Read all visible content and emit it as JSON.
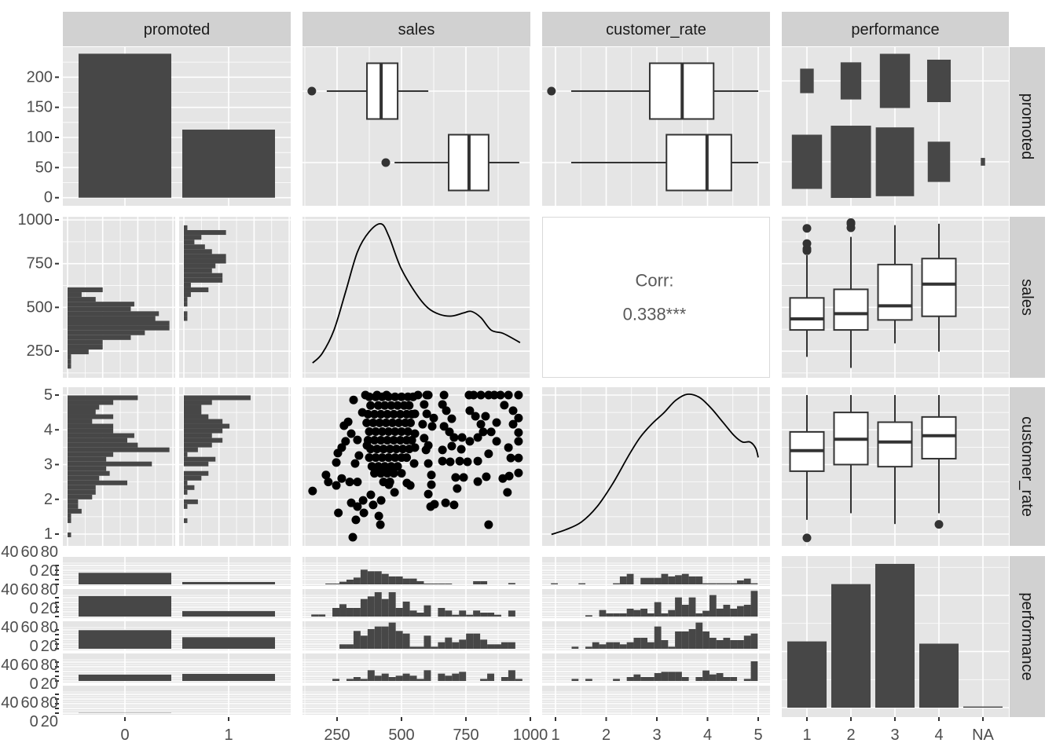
{
  "strips": {
    "top": [
      "promoted",
      "sales",
      "customer_rate",
      "performance"
    ],
    "right": [
      "promoted",
      "sales",
      "customer_rate",
      "performance"
    ]
  },
  "axes": {
    "x": {
      "promoted": [
        "0",
        "1"
      ],
      "sales": [
        "250",
        "500",
        "750",
        "1000"
      ],
      "customer_rate": [
        "1",
        "2",
        "3",
        "4",
        "5"
      ],
      "performance": [
        "1",
        "2",
        "3",
        "4",
        "NA"
      ]
    },
    "y": {
      "promoted": [
        "0",
        "50",
        "100",
        "150",
        "200"
      ],
      "sales": [
        "250",
        "500",
        "750",
        "1000"
      ],
      "customer_rate": [
        "1",
        "2",
        "3",
        "4",
        "5"
      ],
      "performance": [
        "0",
        "20",
        "40",
        "60",
        "80"
      ]
    }
  },
  "correlation": {
    "label": "Corr:",
    "value": "0.338***"
  },
  "colors": {
    "panel": "#e5e5e5",
    "strip": "#d1d1d1",
    "bar": "#474747",
    "grid": "#ffffff",
    "point": "#000000"
  },
  "chart_data": {
    "type": "scatter-matrix",
    "variables": [
      "promoted",
      "sales",
      "customer_rate",
      "performance"
    ],
    "promoted_levels": [
      "0",
      "1"
    ],
    "performance_levels": [
      "1",
      "2",
      "3",
      "4",
      "NA"
    ],
    "promoted_counts": [
      239,
      113
    ],
    "performance_counts": [
      59,
      110,
      128,
      57,
      1
    ],
    "performance_by_promoted": {
      "p0": [
        49,
        87,
        79,
        27,
        1
      ],
      "p1": [
        10,
        23,
        49,
        30,
        0
      ]
    },
    "sales_box_by_promoted": [
      {
        "promoted": "0",
        "min": 210,
        "q1": 366,
        "median": 421,
        "q3": 485,
        "max": 604,
        "outliers": [
          152
        ]
      },
      {
        "promoted": "1",
        "min": 473,
        "q1": 683,
        "median": 762,
        "q3": 838,
        "max": 957,
        "outliers": [
          439
        ]
      }
    ],
    "rate_box_by_promoted": [
      {
        "promoted": "0",
        "min": 1.31,
        "q1": 2.86,
        "median": 3.5,
        "q3": 4.12,
        "max": 5.0,
        "outliers": [
          0.92
        ]
      },
      {
        "promoted": "1",
        "min": 1.31,
        "q1": 3.19,
        "median": 3.99,
        "q3": 4.47,
        "max": 5.0,
        "outliers": []
      }
    ],
    "sales_box_by_performance": [
      {
        "performance": "1",
        "min": 217,
        "q1": 371,
        "median": 434,
        "q3": 554,
        "max": 798,
        "outliers": [
          824,
          835,
          865,
          952
        ]
      },
      {
        "performance": "2",
        "min": 154,
        "q1": 371,
        "median": 464,
        "q3": 603,
        "max": 903,
        "outliers": [
          955,
          978,
          985
        ]
      },
      {
        "performance": "3",
        "min": 294,
        "q1": 428,
        "median": 509,
        "q3": 745,
        "max": 970,
        "outliers": []
      },
      {
        "performance": "4",
        "min": 247,
        "q1": 449,
        "median": 633,
        "q3": 779,
        "max": 978,
        "outliers": []
      }
    ],
    "rate_box_by_performance": [
      {
        "performance": "1",
        "min": 1.41,
        "q1": 2.81,
        "median": 3.4,
        "q3": 3.94,
        "max": 5.0,
        "outliers": [
          0.89
        ]
      },
      {
        "performance": "2",
        "min": 1.6,
        "q1": 3.0,
        "median": 3.73,
        "q3": 4.5,
        "max": 5.0,
        "outliers": []
      },
      {
        "performance": "3",
        "min": 1.29,
        "q1": 2.94,
        "median": 3.65,
        "q3": 4.22,
        "max": 5.0,
        "outliers": []
      },
      {
        "performance": "4",
        "min": 1.6,
        "q1": 3.17,
        "median": 3.83,
        "q3": 4.37,
        "max": 5.0,
        "outliers": [
          1.28
        ]
      }
    ],
    "sales_hist_by_promoted": {
      "bin_start": 150,
      "bin_width": 27.3,
      "p0": [
        1,
        1,
        1,
        6,
        10,
        10,
        18,
        22,
        29,
        29,
        25,
        26,
        18,
        19,
        8,
        4,
        10,
        0,
        0,
        0,
        0,
        0,
        0,
        0,
        0,
        0,
        0,
        0,
        0,
        0
      ],
      "p1": [
        0,
        0,
        0,
        0,
        0,
        0,
        0,
        0,
        0,
        0,
        1,
        1,
        0,
        1,
        1,
        2,
        7,
        2,
        11,
        11,
        8,
        9,
        12,
        12,
        8,
        6,
        3,
        5,
        12,
        1
      ]
    },
    "rate_hist_by_promoted": {
      "bin_start": 0.91,
      "bin_width": 0.136,
      "p0": [
        1,
        0,
        0,
        1,
        1,
        4,
        3,
        3,
        7,
        8,
        8,
        17,
        9,
        12,
        11,
        24,
        11,
        13,
        29,
        20,
        17,
        19,
        13,
        13,
        7,
        13,
        8,
        9,
        13,
        20
      ],
      "p1": [
        0,
        0,
        0,
        1,
        0,
        0,
        1,
        4,
        0,
        1,
        3,
        1,
        5,
        7,
        0,
        7,
        9,
        1,
        4,
        8,
        11,
        8,
        11,
        13,
        11,
        7,
        5,
        5,
        8,
        19
      ]
    },
    "sales_hist_by_performance": {
      "bin_start": 150,
      "bin_width": 27.3,
      "unit": "relative",
      "groups": [
        [
          0,
          0,
          3,
          3,
          10,
          18,
          26,
          56,
          50,
          50,
          40,
          30,
          30,
          22,
          22,
          12,
          3,
          3,
          3,
          3,
          0,
          0,
          0,
          12,
          12,
          0,
          0,
          0,
          5,
          0
        ],
        [
          8,
          8,
          0,
          33,
          47,
          33,
          33,
          67,
          77,
          93,
          67,
          93,
          33,
          57,
          23,
          15,
          43,
          0,
          33,
          23,
          7,
          23,
          7,
          23,
          15,
          15,
          7,
          0,
          23,
          0
        ],
        [
          0,
          0,
          0,
          0,
          17,
          17,
          68,
          50,
          75,
          85,
          85,
          100,
          68,
          58,
          8,
          8,
          50,
          8,
          25,
          43,
          25,
          35,
          58,
          58,
          35,
          17,
          17,
          25,
          25,
          0
        ],
        [
          0,
          0,
          0,
          8,
          0,
          8,
          15,
          8,
          41,
          20,
          28,
          15,
          20,
          28,
          20,
          8,
          41,
          0,
          28,
          20,
          28,
          35,
          0,
          0,
          8,
          28,
          0,
          15,
          41,
          8
        ],
        [
          0,
          0,
          0,
          0,
          0,
          0,
          0,
          0,
          0,
          0,
          0,
          0,
          0,
          0,
          0,
          0,
          0,
          0,
          0,
          0,
          0,
          0,
          0,
          0,
          0,
          0,
          0,
          0,
          0,
          0
        ]
      ]
    },
    "rate_hist_by_performance": {
      "bin_start": 0.91,
      "bin_width": 0.136,
      "unit": "relative",
      "groups": [
        [
          4,
          0,
          0,
          0,
          4,
          0,
          0,
          0,
          0,
          4,
          30,
          40,
          0,
          25,
          25,
          25,
          40,
          30,
          35,
          40,
          30,
          30,
          4,
          4,
          4,
          4,
          4,
          15,
          22,
          4
        ],
        [
          0,
          0,
          0,
          0,
          0,
          5,
          0,
          25,
          12,
          12,
          12,
          30,
          25,
          30,
          12,
          55,
          12,
          25,
          73,
          45,
          73,
          12,
          22,
          82,
          30,
          45,
          30,
          40,
          45,
          98
        ],
        [
          0,
          0,
          0,
          8,
          0,
          8,
          25,
          17,
          25,
          25,
          17,
          25,
          42,
          42,
          25,
          85,
          33,
          8,
          66,
          66,
          75,
          100,
          66,
          42,
          33,
          42,
          33,
          33,
          50,
          58
        ],
        [
          0,
          0,
          0,
          8,
          0,
          8,
          0,
          0,
          0,
          8,
          0,
          15,
          25,
          15,
          15,
          30,
          35,
          35,
          35,
          15,
          0,
          15,
          40,
          25,
          30,
          15,
          15,
          0,
          8,
          75
        ],
        [
          0,
          0,
          0,
          0,
          0,
          0,
          0,
          0,
          0,
          0,
          0,
          0,
          0,
          0,
          0,
          0,
          0,
          0,
          0,
          0,
          0,
          0,
          0,
          0,
          0,
          0,
          0,
          0,
          0,
          0
        ]
      ]
    },
    "sales_density": {
      "x": [
        155,
        192,
        238,
        284,
        329,
        375,
        421,
        451,
        497,
        558,
        604,
        649,
        695,
        741,
        771,
        808,
        848,
        893,
        939,
        960
      ],
      "density_rel": [
        0.11,
        0.17,
        0.32,
        0.57,
        0.82,
        0.95,
        1.0,
        0.92,
        0.72,
        0.55,
        0.46,
        0.42,
        0.41,
        0.43,
        0.44,
        0.4,
        0.32,
        0.3,
        0.26,
        0.24
      ]
    },
    "rate_density": {
      "x": [
        0.92,
        1.2,
        1.51,
        1.82,
        2.13,
        2.44,
        2.67,
        2.91,
        3.14,
        3.37,
        3.6,
        3.84,
        4.07,
        4.3,
        4.53,
        4.69,
        4.84,
        4.95,
        5.0
      ],
      "density_rel": [
        0.09,
        0.12,
        0.17,
        0.27,
        0.42,
        0.6,
        0.72,
        0.81,
        0.88,
        0.96,
        1.0,
        0.98,
        0.91,
        0.82,
        0.73,
        0.69,
        0.69,
        0.65,
        0.59
      ]
    },
    "correlation": 0.338,
    "scatter": [
      [
        155,
        2.24
      ],
      [
        255,
        1.61
      ],
      [
        311,
        0.91
      ],
      [
        323,
        1.41
      ],
      [
        354,
        1.61
      ],
      [
        412,
        1.52
      ],
      [
        418,
        1.27
      ],
      [
        207,
        2.7
      ],
      [
        216,
        2.5
      ],
      [
        247,
        2.4
      ],
      [
        268,
        2.6
      ],
      [
        299,
        2.5
      ],
      [
        329,
        2.5
      ],
      [
        247,
        3.06
      ],
      [
        253,
        3.33
      ],
      [
        268,
        3.49
      ],
      [
        283,
        3.67
      ],
      [
        305,
        3.89
      ],
      [
        277,
        4.12
      ],
      [
        293,
        4.23
      ],
      [
        314,
        4.86
      ],
      [
        360,
        5.0
      ],
      [
        405,
        5.0
      ],
      [
        442,
        5.0
      ],
      [
        348,
        4.5
      ],
      [
        329,
        3.71
      ],
      [
        366,
        3.55
      ],
      [
        320,
        3.03
      ],
      [
        335,
        3.26
      ],
      [
        305,
        1.9
      ],
      [
        329,
        1.79
      ],
      [
        351,
        1.97
      ],
      [
        381,
        2.13
      ],
      [
        390,
        1.84
      ],
      [
        421,
        1.97
      ],
      [
        451,
        2.42
      ],
      [
        473,
        2.2
      ],
      [
        521,
        2.47
      ],
      [
        534,
        2.4
      ],
      [
        838,
        1.27
      ],
      [
        613,
        1.79
      ],
      [
        628,
        1.86
      ],
      [
        671,
        1.9
      ],
      [
        704,
        1.84
      ],
      [
        604,
        2.15
      ],
      [
        616,
        2.42
      ],
      [
        616,
        2.7
      ],
      [
        716,
        2.31
      ],
      [
        710,
        2.63
      ],
      [
        741,
        2.63
      ],
      [
        796,
        2.51
      ],
      [
        829,
        2.65
      ],
      [
        893,
        2.6
      ],
      [
        918,
        2.67
      ],
      [
        954,
        2.76
      ],
      [
        911,
        2.2
      ],
      [
        604,
        3.03
      ],
      [
        659,
        3.1
      ],
      [
        689,
        3.08
      ],
      [
        726,
        3.1
      ],
      [
        756,
        3.08
      ],
      [
        796,
        3.1
      ],
      [
        838,
        3.31
      ],
      [
        924,
        3.19
      ],
      [
        954,
        3.19
      ],
      [
        915,
        3.49
      ],
      [
        954,
        3.67
      ],
      [
        954,
        3.92
      ],
      [
        869,
        3.67
      ],
      [
        869,
        4.21
      ],
      [
        933,
        4.16
      ],
      [
        954,
        4.34
      ],
      [
        933,
        4.55
      ],
      [
        899,
        4.71
      ],
      [
        762,
        5.0
      ],
      [
        808,
        5.0
      ],
      [
        838,
        5.0
      ],
      [
        884,
        5.0
      ],
      [
        915,
        5.0
      ],
      [
        954,
        5.0
      ],
      [
        665,
        5.0
      ],
      [
        604,
        5.0
      ],
      [
        780,
        5.0
      ],
      [
        860,
        5.0
      ],
      [
        659,
        4.73
      ],
      [
        674,
        4.55
      ],
      [
        695,
        4.32
      ],
      [
        665,
        4.1
      ],
      [
        686,
        3.94
      ],
      [
        704,
        3.78
      ],
      [
        735,
        3.78
      ],
      [
        765,
        3.67
      ],
      [
        796,
        3.78
      ],
      [
        817,
        3.94
      ],
      [
        808,
        4.16
      ],
      [
        826,
        4.39
      ],
      [
        848,
        3.94
      ],
      [
        787,
        4.39
      ],
      [
        765,
        4.55
      ],
      [
        659,
        3.42
      ],
      [
        695,
        3.53
      ],
      [
        732,
        3.44
      ],
      [
        564,
        5.0
      ],
      [
        598,
        5.0
      ],
      [
        588,
        4.73
      ],
      [
        552,
        4.46
      ],
      [
        598,
        4.46
      ],
      [
        625,
        4.34
      ],
      [
        582,
        4.16
      ],
      [
        619,
        4.1
      ],
      [
        552,
        3.89
      ],
      [
        588,
        3.76
      ],
      [
        552,
        3.49
      ],
      [
        595,
        3.42
      ],
      [
        549,
        3.03
      ],
      [
        604,
        3.55
      ],
      [
        375,
        4.95
      ],
      [
        400,
        4.95
      ],
      [
        425,
        4.95
      ],
      [
        450,
        4.95
      ],
      [
        475,
        4.95
      ],
      [
        500,
        4.95
      ],
      [
        525,
        4.95
      ],
      [
        545,
        4.95
      ],
      [
        380,
        4.7
      ],
      [
        410,
        4.7
      ],
      [
        435,
        4.7
      ],
      [
        460,
        4.7
      ],
      [
        485,
        4.7
      ],
      [
        510,
        4.7
      ],
      [
        530,
        4.7
      ],
      [
        370,
        4.45
      ],
      [
        395,
        4.45
      ],
      [
        420,
        4.45
      ],
      [
        445,
        4.45
      ],
      [
        470,
        4.45
      ],
      [
        495,
        4.45
      ],
      [
        520,
        4.45
      ],
      [
        540,
        4.45
      ],
      [
        365,
        4.2
      ],
      [
        390,
        4.2
      ],
      [
        415,
        4.2
      ],
      [
        440,
        4.2
      ],
      [
        465,
        4.2
      ],
      [
        490,
        4.2
      ],
      [
        515,
        4.2
      ],
      [
        535,
        4.2
      ],
      [
        375,
        3.95
      ],
      [
        400,
        3.95
      ],
      [
        425,
        3.95
      ],
      [
        450,
        3.95
      ],
      [
        475,
        3.95
      ],
      [
        500,
        3.95
      ],
      [
        525,
        3.95
      ],
      [
        370,
        3.7
      ],
      [
        395,
        3.7
      ],
      [
        420,
        3.7
      ],
      [
        445,
        3.7
      ],
      [
        470,
        3.7
      ],
      [
        495,
        3.7
      ],
      [
        520,
        3.7
      ],
      [
        540,
        3.7
      ],
      [
        380,
        3.45
      ],
      [
        405,
        3.45
      ],
      [
        430,
        3.45
      ],
      [
        455,
        3.45
      ],
      [
        480,
        3.45
      ],
      [
        505,
        3.45
      ],
      [
        530,
        3.45
      ],
      [
        375,
        3.2
      ],
      [
        400,
        3.2
      ],
      [
        425,
        3.2
      ],
      [
        450,
        3.2
      ],
      [
        475,
        3.2
      ],
      [
        500,
        3.2
      ],
      [
        520,
        3.2
      ],
      [
        385,
        2.95
      ],
      [
        410,
        2.95
      ],
      [
        435,
        2.95
      ],
      [
        460,
        2.95
      ],
      [
        485,
        2.95
      ],
      [
        395,
        2.75
      ],
      [
        420,
        2.75
      ],
      [
        445,
        2.75
      ],
      [
        470,
        2.75
      ],
      [
        500,
        2.75
      ],
      [
        430,
        2.5
      ],
      [
        455,
        2.5
      ]
    ]
  }
}
